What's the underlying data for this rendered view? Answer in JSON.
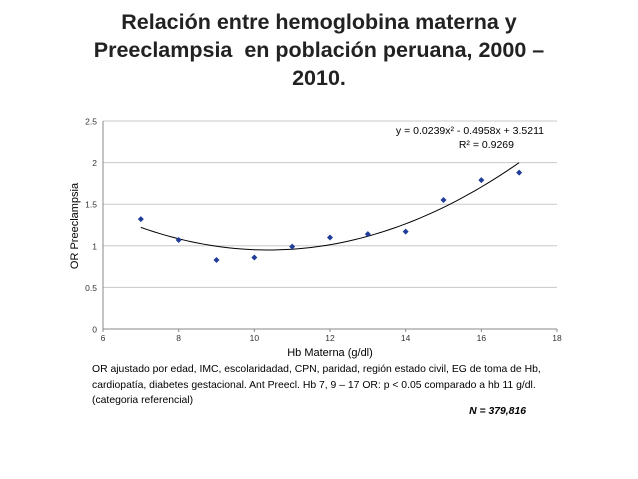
{
  "title_lines": [
    "Relación entre hemoglobina materna y",
    "Preeclampsia  en población peruana, 2000 –",
    "2010."
  ],
  "footnote": "OR  ajustado por edad, IMC, escolaridadad, CPN, paridad, región estado civil, EG de toma de Hb,  cardiopatía, diabetes gestacional.  Ant Preecl. Hb  7, 9 – 17 OR: p < 0.05 comparado a hb 11 g/dl. (categoria referencial)",
  "sample_size": "N = 379,816",
  "chart_data": {
    "type": "scatter",
    "xlabel": "Hb Materna (g/dl)",
    "ylabel": "OR  Preeclampsia",
    "xlim": [
      6,
      18
    ],
    "ylim": [
      0,
      2.5
    ],
    "x_ticks": [
      "6",
      "8",
      "10",
      "12",
      "14",
      "16",
      "18"
    ],
    "y_ticks": [
      "0",
      "0.5",
      "1",
      "1.5",
      "2",
      "2.5"
    ],
    "grid": true,
    "series": [
      {
        "x": [
          7,
          8,
          9,
          10,
          11,
          12,
          13,
          14,
          15,
          16,
          17
        ],
        "y": [
          1.32,
          1.07,
          0.83,
          0.86,
          0.99,
          1.1,
          1.14,
          1.17,
          1.55,
          1.79,
          1.88
        ],
        "color": "#1f3d99"
      }
    ],
    "trendline": {
      "type": "polynomial",
      "coefficients": [
        0.0239,
        -0.4958,
        3.5211
      ],
      "x_range": [
        7,
        17
      ],
      "color": "#000000"
    },
    "equation_label": "y = 0.0239x² - 0.4958x + 3.5211",
    "r2_label": "R² = 0.9269"
  }
}
